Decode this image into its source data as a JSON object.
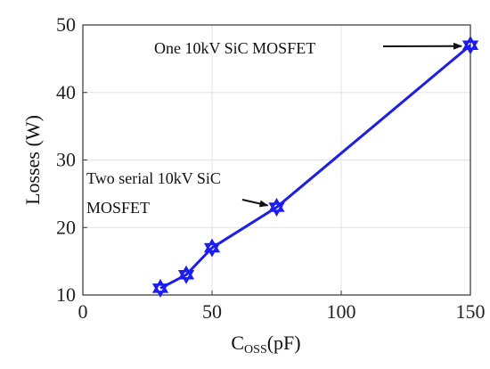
{
  "chart_data": {
    "type": "line",
    "title": "",
    "xlabel": "Coss(pF)",
    "xlabel_main": "C",
    "xlabel_sub": "OSS",
    "xlabel_unit": "(pF)",
    "ylabel": "Losses (W)",
    "xlim": [
      0,
      150
    ],
    "ylim": [
      10,
      50
    ],
    "xticks": [
      0,
      50,
      100,
      150
    ],
    "yticks": [
      10,
      20,
      30,
      40,
      50
    ],
    "grid": true,
    "line_color": "#1a1aff",
    "series": [
      {
        "x": [
          30,
          40,
          50,
          75,
          150
        ],
        "y": [
          11,
          13,
          17,
          23,
          47
        ],
        "marker": "hexagram"
      }
    ],
    "annotations": [
      {
        "lines": [
          "One 10kV SiC MOSFET"
        ],
        "target": {
          "x": 150,
          "y": 47
        }
      },
      {
        "lines": [
          "Two serial 10kV SiC",
          "MOSFET"
        ],
        "target": {
          "x": 75,
          "y": 23
        }
      }
    ]
  }
}
